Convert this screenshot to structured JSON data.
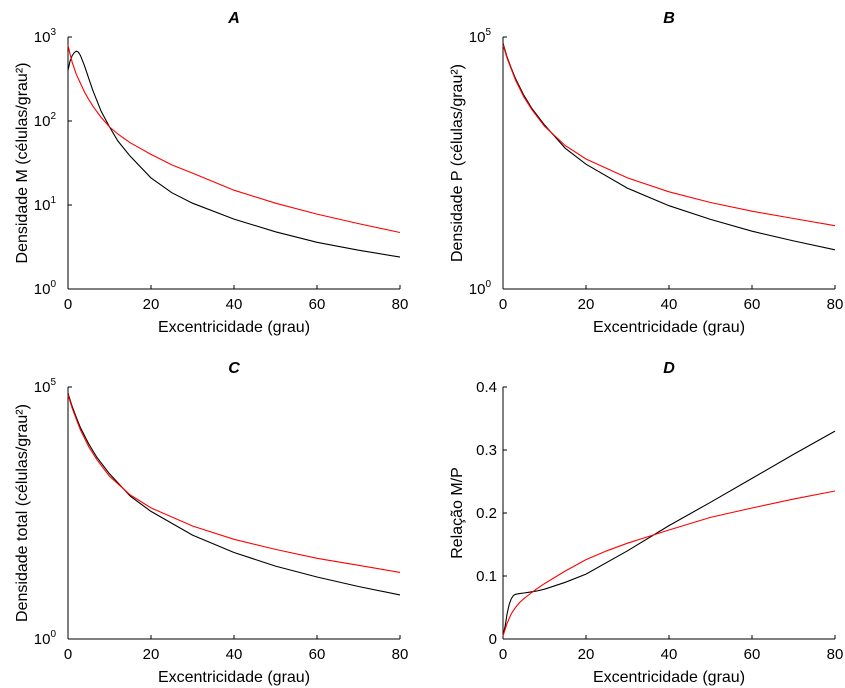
{
  "chart_data": [
    {
      "panel": "A",
      "type": "line",
      "title": "A",
      "xlabel": "Excentricidade (grau)",
      "ylabel": "Densidade M (células/grau²)",
      "xlim": [
        0,
        80
      ],
      "ylim": [
        1,
        1000
      ],
      "yscale": "log",
      "xticks": [
        0,
        20,
        40,
        60,
        80
      ],
      "yticks": [
        {
          "base": "10",
          "exp": "0"
        },
        {
          "base": "10",
          "exp": "1"
        },
        {
          "base": "10",
          "exp": "2"
        },
        {
          "base": "10",
          "exp": "3"
        }
      ],
      "grid": false,
      "legend": "none",
      "series": [
        {
          "color": "#000000",
          "x": [
            0,
            0.5,
            1,
            1.5,
            2,
            2.5,
            3,
            4,
            5,
            6,
            8,
            10,
            12,
            15,
            20,
            25,
            30,
            40,
            50,
            60,
            70,
            80
          ],
          "y": [
            400,
            520,
            600,
            650,
            680,
            660,
            600,
            450,
            320,
            230,
            130,
            85,
            58,
            38,
            21,
            14,
            10.5,
            6.8,
            4.8,
            3.6,
            2.9,
            2.4
          ]
        },
        {
          "color": "#ff0000",
          "x": [
            0,
            0.5,
            1,
            2,
            3,
            4,
            5,
            6,
            8,
            10,
            12,
            15,
            20,
            25,
            30,
            40,
            50,
            60,
            70,
            80
          ],
          "y": [
            800,
            620,
            500,
            360,
            280,
            220,
            180,
            150,
            110,
            85,
            70,
            55,
            40,
            30,
            24,
            15,
            10.5,
            7.8,
            6,
            4.7
          ]
        }
      ]
    },
    {
      "panel": "B",
      "type": "line",
      "title": "B",
      "xlabel": "Excentricidade (grau)",
      "ylabel": "Densidade P (células/grau²)",
      "xlim": [
        0,
        80
      ],
      "ylim": [
        1,
        100000
      ],
      "yscale": "log",
      "xticks": [
        0,
        20,
        40,
        60,
        80
      ],
      "yticks": [
        {
          "base": "10",
          "exp": "0"
        },
        {
          "base": "10",
          "exp": "5"
        }
      ],
      "grid": false,
      "legend": "none",
      "series": [
        {
          "color": "#000000",
          "x": [
            0,
            1,
            2,
            3,
            5,
            7,
            10,
            15,
            20,
            30,
            40,
            50,
            60,
            70,
            80
          ],
          "y": [
            75000,
            40000,
            24000,
            15000,
            7000,
            3800,
            1800,
            620,
            300,
            100,
            45,
            24,
            14,
            9,
            6
          ]
        },
        {
          "color": "#ff0000",
          "x": [
            0,
            1,
            2,
            3,
            5,
            7,
            10,
            15,
            20,
            30,
            40,
            50,
            60,
            70,
            80
          ],
          "y": [
            70000,
            38000,
            23000,
            14000,
            6500,
            3600,
            1700,
            700,
            380,
            160,
            85,
            52,
            35,
            25,
            18
          ]
        }
      ]
    },
    {
      "panel": "C",
      "type": "line",
      "title": "C",
      "xlabel": "Excentricidade (grau)",
      "ylabel": "Densidade total (células/grau²)",
      "xlim": [
        0,
        80
      ],
      "ylim": [
        1,
        100000
      ],
      "yscale": "log",
      "xticks": [
        0,
        20,
        40,
        60,
        80
      ],
      "yticks": [
        {
          "base": "10",
          "exp": "0"
        },
        {
          "base": "10",
          "exp": "5"
        }
      ],
      "grid": false,
      "legend": "none",
      "series": [
        {
          "color": "#000000",
          "x": [
            0,
            1,
            2,
            3,
            5,
            7,
            10,
            15,
            20,
            30,
            40,
            50,
            60,
            70,
            80
          ],
          "y": [
            75000,
            41000,
            25000,
            15500,
            7400,
            4000,
            1900,
            680,
            340,
            115,
            52,
            28,
            17,
            11,
            7.5
          ]
        },
        {
          "color": "#ff0000",
          "x": [
            0,
            1,
            2,
            3,
            5,
            7,
            10,
            15,
            20,
            30,
            40,
            50,
            60,
            70,
            80
          ],
          "y": [
            70000,
            38000,
            23000,
            14000,
            6500,
            3600,
            1700,
            720,
            400,
            175,
            95,
            60,
            40,
            29,
            21
          ]
        }
      ]
    },
    {
      "panel": "D",
      "type": "line",
      "title": "D",
      "xlabel": "Excentricidade (grau)",
      "ylabel": "Relação M/P",
      "xlim": [
        0,
        80
      ],
      "ylim": [
        0,
        0.4
      ],
      "yscale": "linear",
      "xticks": [
        0,
        20,
        40,
        60,
        80
      ],
      "yticks": [
        {
          "base": "0"
        },
        {
          "base": "0.1"
        },
        {
          "base": "0.2"
        },
        {
          "base": "0.3"
        },
        {
          "base": "0.4"
        }
      ],
      "grid": false,
      "legend": "none",
      "series": [
        {
          "color": "#000000",
          "x": [
            0,
            0.5,
            1,
            1.5,
            2,
            2.5,
            3,
            4,
            5,
            6,
            8,
            10,
            15,
            20,
            30,
            40,
            50,
            60,
            70,
            80
          ],
          "y": [
            0.005,
            0.02,
            0.04,
            0.055,
            0.064,
            0.069,
            0.071,
            0.072,
            0.073,
            0.074,
            0.076,
            0.079,
            0.09,
            0.103,
            0.14,
            0.18,
            0.217,
            0.255,
            0.293,
            0.33
          ]
        },
        {
          "color": "#ff0000",
          "x": [
            0,
            1,
            2,
            3,
            4,
            5,
            6,
            8,
            10,
            15,
            20,
            25,
            30,
            40,
            50,
            60,
            70,
            80
          ],
          "y": [
            0.005,
            0.025,
            0.04,
            0.05,
            0.058,
            0.064,
            0.069,
            0.079,
            0.088,
            0.108,
            0.126,
            0.14,
            0.152,
            0.173,
            0.193,
            0.208,
            0.222,
            0.235
          ]
        }
      ]
    }
  ]
}
